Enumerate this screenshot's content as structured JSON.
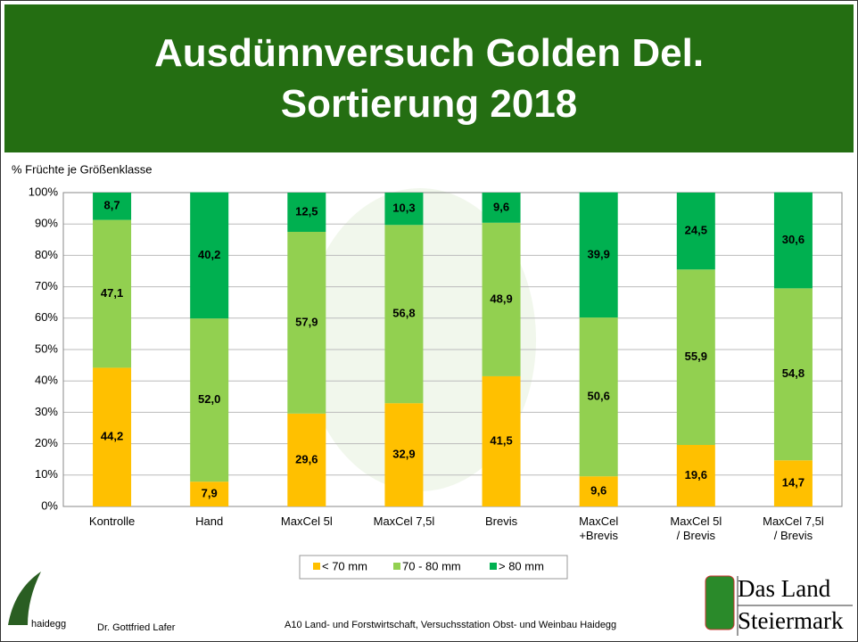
{
  "chart_data": {
    "type": "stacked_bar",
    "title": [
      "Ausdünnversuch Golden Del.",
      "Sortierung 2018"
    ],
    "y_label": "% Früchte je Größenklasse",
    "categories": [
      "Kontrolle",
      "Hand",
      "MaxCel 5l",
      "MaxCel 7,5l",
      "Brevis",
      "MaxCel\n+Brevis",
      "MaxCel 5l\n/ Brevis",
      "MaxCel 7,5l\n/ Brevis"
    ],
    "series": [
      {
        "name": "< 70 mm",
        "color": "#ffc000",
        "values": [
          44.2,
          7.9,
          29.6,
          32.9,
          41.5,
          9.6,
          19.6,
          14.7
        ],
        "value_labels": [
          "44,2",
          "7,9",
          "29,6",
          "32,9",
          "41,5",
          "9,6",
          "19,6",
          "14,7"
        ]
      },
      {
        "name": "70 - 80 mm",
        "color": "#92d050",
        "values": [
          47.1,
          52.0,
          57.9,
          56.8,
          48.9,
          50.6,
          55.9,
          54.8
        ],
        "value_labels": [
          "47,1",
          "52,0",
          "57,9",
          "56,8",
          "48,9",
          "50,6",
          "55,9",
          "54,8"
        ]
      },
      {
        "name": "> 80 mm",
        "color": "#00b050",
        "values": [
          8.7,
          40.2,
          12.5,
          10.3,
          9.6,
          39.9,
          24.5,
          30.6
        ],
        "value_labels": [
          "8,7",
          "40,2",
          "12,5",
          "10,3",
          "9,6",
          "39,9",
          "24,5",
          "30,6"
        ]
      }
    ],
    "ylim": [
      0,
      100
    ],
    "yticks": [
      {
        "value": 0,
        "label": "0%"
      },
      {
        "value": 10,
        "label": "10%"
      },
      {
        "value": 20,
        "label": "20%"
      },
      {
        "value": 30,
        "label": "30%"
      },
      {
        "value": 40,
        "label": "40%"
      },
      {
        "value": 50,
        "label": "50%"
      },
      {
        "value": 60,
        "label": "60%"
      },
      {
        "value": 70,
        "label": "70%"
      },
      {
        "value": 80,
        "label": "80%"
      },
      {
        "value": 90,
        "label": "90%"
      },
      {
        "value": 100,
        "label": "100%"
      }
    ],
    "grid": true,
    "legend": "bottom"
  },
  "footer": {
    "logo_text": "haidegg",
    "author": "Dr. Gottfried Lafer",
    "institution": "A10 Land- und Forstwirtschaft, Versuchsstation Obst- und Weinbau Haidegg",
    "brand": [
      "Das Land",
      "Steiermark"
    ]
  }
}
